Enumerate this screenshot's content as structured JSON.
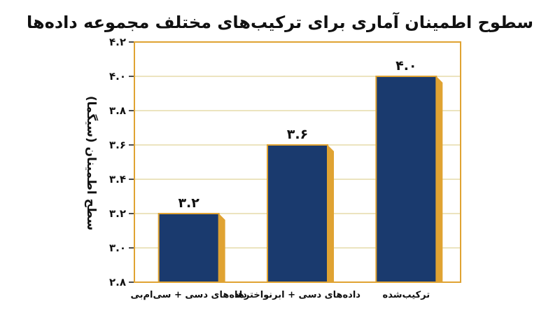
{
  "chart_data": {
    "type": "bar",
    "title": "سطوح اطمینان آماری برای ترکیب‌های مختلف مجموعه داده‌ها",
    "xlabel": "",
    "ylabel": "سطح اطمینان (سیگما)",
    "categories": [
      "داده‌های دسی + سی‌ام‌بی",
      "داده‌های دسی + ابرنواخترها",
      "ترکیب‌شده"
    ],
    "values": [
      3.2,
      3.6,
      4.0
    ],
    "value_labels": [
      "۳.۲",
      "۳.۶",
      "۴.۰"
    ],
    "ylim": [
      2.8,
      4.2
    ],
    "yticks": [
      2.8,
      3.0,
      3.2,
      3.4,
      3.6,
      3.8,
      4.0,
      4.2
    ],
    "ytick_labels": [
      "۲.۸",
      "۳.۰",
      "۳.۲",
      "۳.۴",
      "۳.۶",
      "۳.۸",
      "۴.۰",
      "۴.۲"
    ],
    "grid": true,
    "legend": "none",
    "colors": {
      "bar": "#1a3a6e",
      "bar_shadow": "#e0a332",
      "bar_outline": "#e0a332",
      "grid": "#e6dcaa",
      "text": "#111111"
    }
  }
}
